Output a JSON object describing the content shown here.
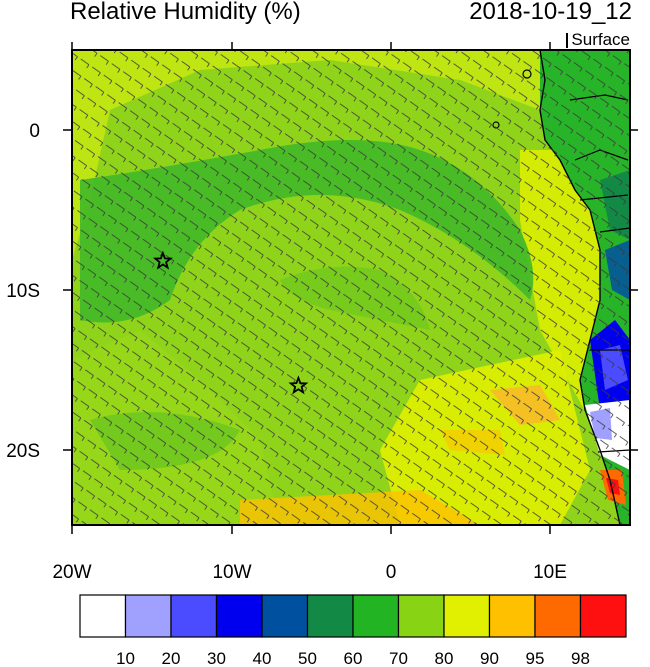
{
  "title": "Relative Humidity (%)",
  "date": "2018-10-19_12",
  "level": "Surface",
  "axes": {
    "lon_labels": [
      "20W",
      "10W",
      "0",
      "10E"
    ],
    "lat_labels": [
      "0",
      "10S",
      "20S"
    ]
  },
  "legend": {
    "colors": [
      "#ffffff",
      "#a0a0ff",
      "#4b4bff",
      "#0000ee",
      "#0050a0",
      "#128a46",
      "#22b422",
      "#88d414",
      "#e0f000",
      "#ffc000",
      "#ff6a00",
      "#ff1010"
    ],
    "labels": [
      "10",
      "20",
      "30",
      "40",
      "50",
      "60",
      "70",
      "80",
      "90",
      "95",
      "98"
    ]
  },
  "colors": {
    "sea_background": "#8fd41a",
    "land": "#28b428"
  },
  "markers": [
    {
      "name": "station-star-west",
      "lon": -14.3,
      "lat": -8.2
    },
    {
      "name": "station-star-south",
      "lon": -5.8,
      "lat": -16.0
    }
  ]
}
